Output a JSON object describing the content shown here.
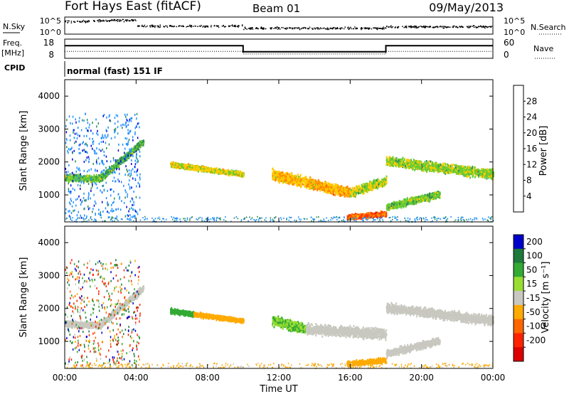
{
  "header": {
    "station": "Fort Hays East (fitACF)",
    "beam": "Beam 01",
    "date": "09/May/2013"
  },
  "top_panels": {
    "noise": {
      "left_label": "N.Sky",
      "right_label": "N.Search",
      "left_ticks": [
        "10^5",
        "10^0"
      ],
      "right_ticks": [
        "10^5",
        "10^0"
      ]
    },
    "freq": {
      "left_label": "Freq.",
      "left_unit": "[MHz]",
      "right_label": "Nave",
      "left_ticks": [
        "18",
        "8"
      ],
      "right_ticks": [
        "60",
        "0"
      ]
    },
    "cpid": {
      "label": "CPID",
      "text": "normal (fast) 151 IF"
    }
  },
  "chart_data": [
    {
      "type": "heatmap",
      "name": "power",
      "xlabel": "",
      "ylabel": "Slant Range [km]",
      "xlim": [
        0,
        24
      ],
      "ylim": [
        180,
        4500
      ],
      "yticks": [
        1000,
        2000,
        3000,
        4000
      ],
      "colorbar": {
        "label": "Power [dB]",
        "ticks": [
          4,
          8,
          12,
          16,
          20,
          24,
          28
        ],
        "range": [
          0,
          32
        ],
        "colors": [
          "#0000dd",
          "#1e90ff",
          "#2e8b57",
          "#66cc33",
          "#ffcc00",
          "#ff8800",
          "#ff3300",
          "#cc0000"
        ]
      },
      "echo_bands": [
        {
          "t0": 0.0,
          "t1": 2.0,
          "r0": 1550,
          "r1": 1520,
          "width": 220,
          "power": 14
        },
        {
          "t0": 2.0,
          "t1": 4.4,
          "r0": 1540,
          "r1": 2650,
          "width": 240,
          "power": 12
        },
        {
          "t0": 5.9,
          "t1": 10.0,
          "r0": 1950,
          "r1": 1650,
          "width": 170,
          "power": 17
        },
        {
          "t0": 11.6,
          "t1": 13.5,
          "r0": 1650,
          "r1": 1400,
          "width": 360,
          "power": 19
        },
        {
          "t0": 13.5,
          "t1": 16.0,
          "r0": 1400,
          "r1": 1100,
          "width": 360,
          "power": 20
        },
        {
          "t0": 16.0,
          "t1": 18.0,
          "r0": 1100,
          "r1": 1450,
          "width": 300,
          "power": 16
        },
        {
          "t0": 18.0,
          "t1": 24.0,
          "r0": 2050,
          "r1": 1650,
          "width": 320,
          "power": 15
        },
        {
          "t0": 18.0,
          "t1": 21.0,
          "r0": 650,
          "r1": 1050,
          "width": 240,
          "power": 14
        },
        {
          "t0": 15.8,
          "t1": 18.0,
          "r0": 350,
          "r1": 450,
          "width": 170,
          "power": 24
        }
      ]
    },
    {
      "type": "heatmap",
      "name": "velocity",
      "xlabel": "Time UT",
      "ylabel": "Slant Range [km]",
      "xlim": [
        0,
        24
      ],
      "ylim": [
        180,
        4500
      ],
      "yticks": [
        1000,
        2000,
        3000,
        4000
      ],
      "xticks": [
        "00:00",
        "04:00",
        "08:00",
        "12:00",
        "16:00",
        "20:00",
        "00:00"
      ],
      "colorbar": {
        "label": "Velocity [m s⁻¹]",
        "ticks": [
          "200",
          "100",
          "50",
          "15",
          "-15",
          "-50",
          "-100",
          "-200"
        ],
        "colors": [
          "#0000cc",
          "#1e7a3a",
          "#33aa33",
          "#99dd33",
          "#c8c8c0",
          "#ffaa00",
          "#ff6600",
          "#ff2200",
          "#dd0000"
        ]
      },
      "echo_bands": [
        {
          "t0": 0.0,
          "t1": 2.0,
          "r0": 1550,
          "r1": 1520,
          "width": 220,
          "vel": 0
        },
        {
          "t0": 2.0,
          "t1": 4.4,
          "r0": 1540,
          "r1": 2650,
          "width": 240,
          "vel": 0
        },
        {
          "t0": 5.9,
          "t1": 7.2,
          "r0": 1950,
          "r1": 1850,
          "width": 170,
          "vel": 40
        },
        {
          "t0": 7.2,
          "t1": 10.0,
          "r0": 1850,
          "r1": 1650,
          "width": 150,
          "vel": -30
        },
        {
          "t0": 11.6,
          "t1": 13.5,
          "r0": 1650,
          "r1": 1400,
          "width": 360,
          "vel": 30
        },
        {
          "t0": 13.5,
          "t1": 18.0,
          "r0": 1400,
          "r1": 1250,
          "width": 360,
          "vel": 0
        },
        {
          "t0": 18.0,
          "t1": 24.0,
          "r0": 2050,
          "r1": 1650,
          "width": 320,
          "vel": 0
        },
        {
          "t0": 18.0,
          "t1": 21.0,
          "r0": 650,
          "r1": 1050,
          "width": 240,
          "vel": 0
        },
        {
          "t0": 15.8,
          "t1": 18.0,
          "r0": 350,
          "r1": 450,
          "width": 170,
          "vel": -30
        }
      ]
    }
  ],
  "freq_series": {
    "freq_mhz": [
      {
        "t0": 0,
        "t1": 10,
        "value": 14.5
      },
      {
        "t0": 10,
        "t1": 18,
        "value": 10.5
      },
      {
        "t0": 18,
        "t1": 24,
        "value": 14.5
      }
    ],
    "nave": [
      {
        "t0": 0,
        "t1": 10,
        "value": 22
      },
      {
        "t0": 10,
        "t1": 18,
        "value": 12
      },
      {
        "t0": 18,
        "t1": 24,
        "value": 22
      }
    ]
  }
}
